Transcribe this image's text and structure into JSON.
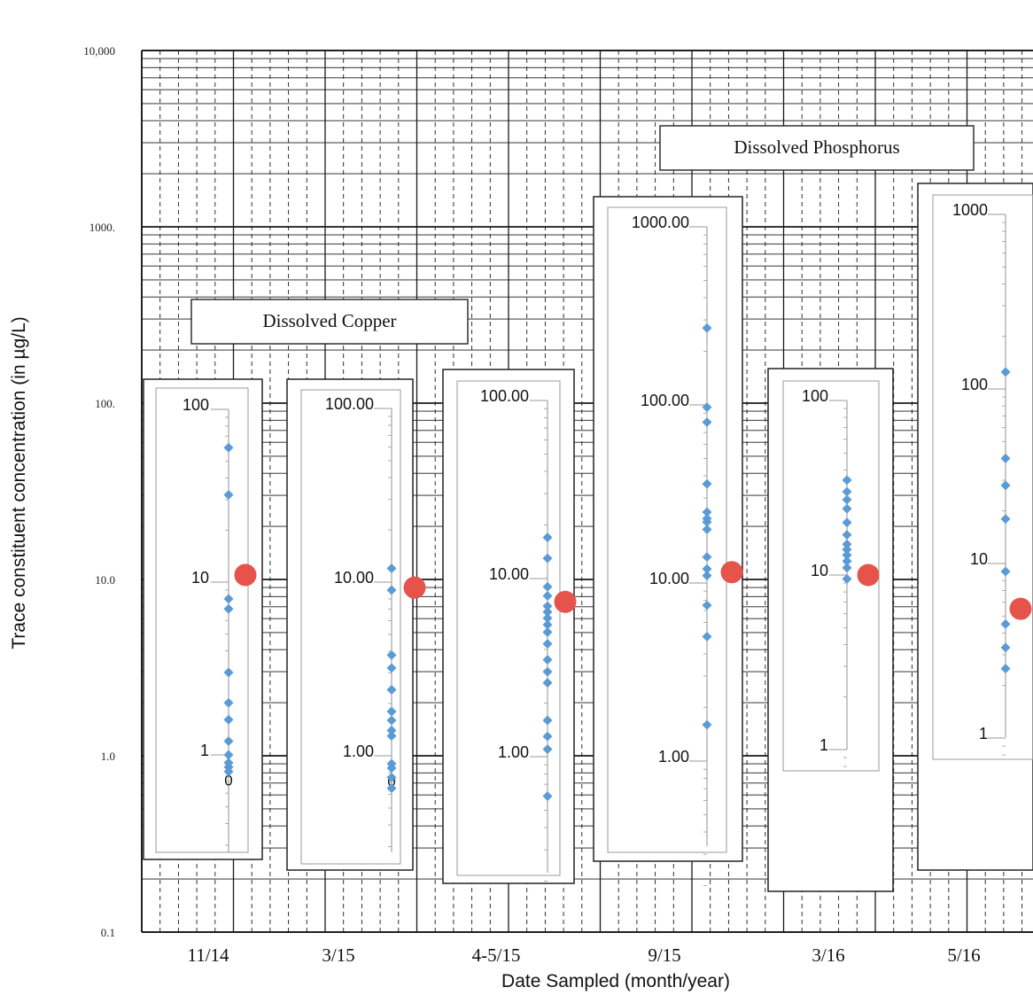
{
  "chart_data": {
    "type": "scatter",
    "xlabel": "Date Sampled (month/year)",
    "ylabel": "Trace constituent concentration (in µg/L)",
    "y_scale": "log",
    "ylim": [
      0.1,
      10000
    ],
    "y_tick_labels": [
      "10,000",
      "1000.",
      "100.",
      "10.0",
      "1.0",
      "0.1"
    ],
    "categories": [
      "11/14",
      "3/15",
      "4-5/15",
      "9/15",
      "3/16",
      "5/16"
    ],
    "group_labels": [
      "Dissolved Copper",
      "Dissolved Phosphorus"
    ],
    "insets": [
      {
        "category": "11/14",
        "group": "Dissolved Copper",
        "ylim": [
          0.3,
          100
        ],
        "tick_labels": [
          "100",
          "10",
          "1",
          "0"
        ],
        "values": [
          60,
          32,
          8,
          7,
          3,
          2,
          1.6,
          1.2,
          1.0,
          0.9,
          0.85,
          0.8
        ],
        "highlight_value": 11
      },
      {
        "category": "3/15",
        "group": "Dissolved Copper",
        "ylim": [
          0.3,
          100
        ],
        "tick_labels": [
          "100.00",
          "10.00",
          "1.00",
          "0"
        ],
        "values": [
          12,
          9,
          3.8,
          3.2,
          2.4,
          1.8,
          1.6,
          1.4,
          1.3,
          0.9,
          0.85,
          0.75,
          0.65
        ],
        "highlight_value": 9.3
      },
      {
        "category": "4-5/15",
        "group": "Dissolved Copper",
        "ylim": [
          0.2,
          100
        ],
        "tick_labels": [
          "100.00",
          "10.00",
          "1.00"
        ],
        "values": [
          17,
          13,
          9,
          8,
          7,
          6.5,
          6,
          5.5,
          5,
          4.3,
          3.5,
          3,
          2.6,
          1.6,
          1.3,
          1.1,
          0.6
        ],
        "highlight_value": 7.4
      },
      {
        "category": "9/15",
        "group": "Dissolved Phosphorus",
        "ylim": [
          0.18,
          1000
        ],
        "tick_labels": [
          "1000.00",
          "100.00",
          "10.00",
          "1.00"
        ],
        "values": [
          270,
          97,
          80,
          36,
          25,
          23,
          22,
          20,
          14,
          12,
          11,
          7.5,
          5,
          1.6
        ],
        "highlight_value": 11.5
      },
      {
        "category": "3/16",
        "group": "Dissolved Phosphorus",
        "ylim": [
          0.8,
          100
        ],
        "tick_labels": [
          "100",
          "10",
          "1"
        ],
        "values": [
          35,
          30,
          27,
          24,
          20,
          17,
          15,
          14,
          13,
          12,
          11,
          9.5
        ],
        "highlight_value": 10
      },
      {
        "category": "5/16",
        "group": "Dissolved Phosphorus",
        "ylim": [
          0.8,
          1000
        ],
        "tick_labels": [
          "1000",
          "100",
          "10",
          "1"
        ],
        "values": [
          125,
          40,
          28,
          18,
          9,
          4.5,
          3.3,
          2.5
        ],
        "highlight_value": 5.5
      }
    ]
  },
  "colors": {
    "points": "#5b9bd5",
    "highlight": "#e5534b",
    "grid": "#1a1a1a",
    "inset_axis": "#9a9a9a"
  }
}
